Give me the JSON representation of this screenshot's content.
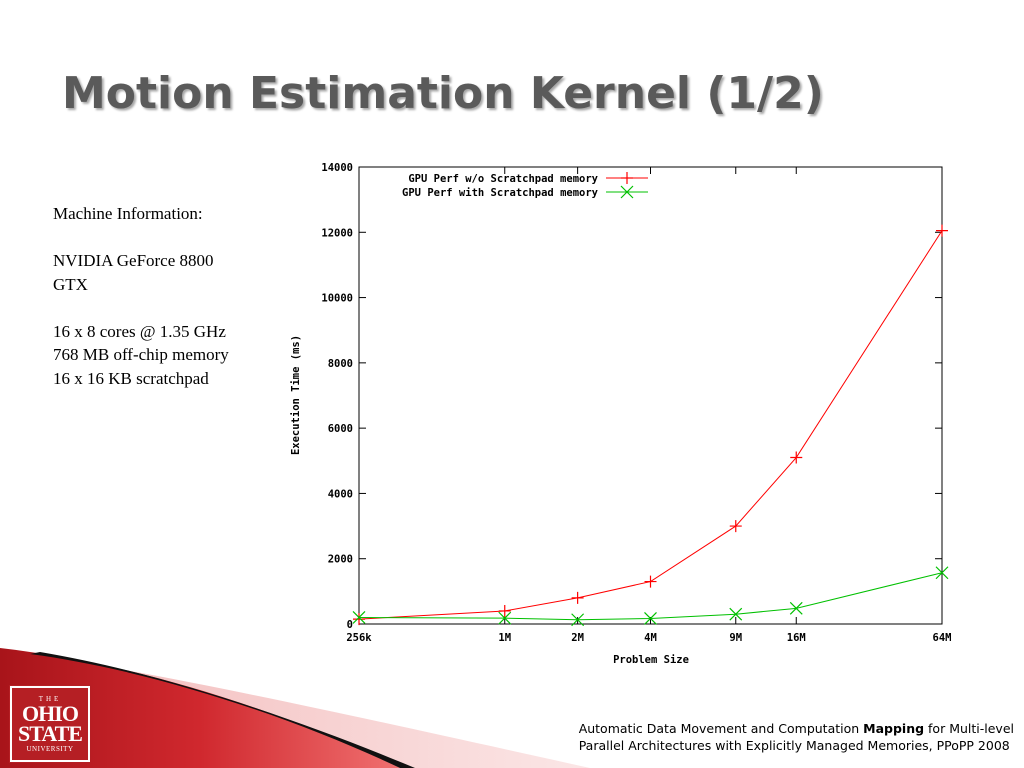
{
  "slide": {
    "title": "Motion Estimation Kernel (1/2)"
  },
  "machine_info": {
    "heading": "Machine Information:",
    "gpu_line1": "NVIDIA GeForce 8800",
    "gpu_line2": "GTX",
    "cores": "16 x 8 cores @ 1.35 GHz",
    "memory": "768 MB off-chip memory",
    "scratchpad": "16 x 16 KB scratchpad"
  },
  "logo": {
    "the": "THE",
    "ohio": "OHIO",
    "state": "STATE",
    "university": "UNIVERSITY"
  },
  "footer": {
    "line1_pre": "Automatic Data Movement and Computation ",
    "line1_bold": "Mapping",
    "line1_post": " for Multi-level",
    "line2": "Parallel Architectures with Explicitly Managed Memories, PPoPP 2008"
  },
  "colors": {
    "series_red": "#ff0000",
    "series_green": "#00c000",
    "brand_red": "#b51f24",
    "title_gray": "#5a5a5a"
  },
  "chart_data": {
    "type": "line",
    "xlabel": "Problem Size",
    "ylabel": "Execution Time (ms)",
    "ylim": [
      0,
      14000
    ],
    "yticks": [
      0,
      2000,
      4000,
      6000,
      8000,
      10000,
      12000,
      14000
    ],
    "x_scale": "log",
    "categories": [
      "256k",
      "1M",
      "2M",
      "4M",
      "9M",
      "16M",
      "64M"
    ],
    "legend_position": "top-left",
    "grid": false,
    "series": [
      {
        "name": "GPU Perf w/o Scratchpad memory",
        "marker": "plus",
        "color": "#ff0000",
        "values": [
          150,
          400,
          800,
          1300,
          3000,
          5100,
          12050
        ]
      },
      {
        "name": "GPU Perf with Scratchpad memory",
        "marker": "cross",
        "color": "#00c000",
        "values": [
          200,
          180,
          130,
          170,
          300,
          480,
          1570
        ]
      }
    ]
  }
}
